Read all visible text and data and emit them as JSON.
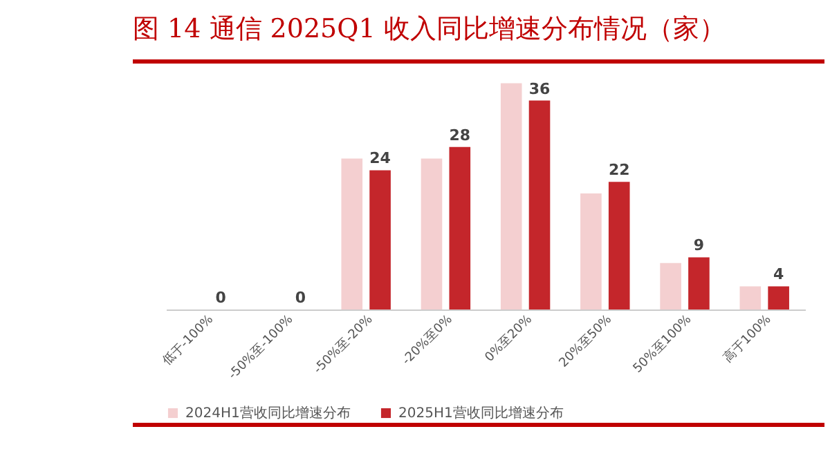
{
  "chart_data": {
    "type": "bar",
    "title": "图 14 通信 2025Q1 收入同比增速分布情况（家）",
    "categories": [
      "低于-100%",
      "-50%至-100%",
      "-50%至-20%",
      "-20%至0%",
      "0%至20%",
      "20%至50%",
      "50%至100%",
      "高于100%"
    ],
    "series": [
      {
        "name": "2024H1营收同比增速分布",
        "color": "#f4cfd0",
        "values": [
          0,
          0,
          26,
          26,
          39,
          20,
          8,
          4
        ]
      },
      {
        "name": "2025H1营收同比增速分布",
        "color": "#c4262b",
        "values": [
          0,
          0,
          24,
          28,
          36,
          22,
          9,
          4
        ],
        "value_labels": [
          "0",
          "0",
          "24",
          "28",
          "36",
          "22",
          "9",
          "4"
        ]
      }
    ],
    "legend": "bottom",
    "tick_labels": "x"
  }
}
